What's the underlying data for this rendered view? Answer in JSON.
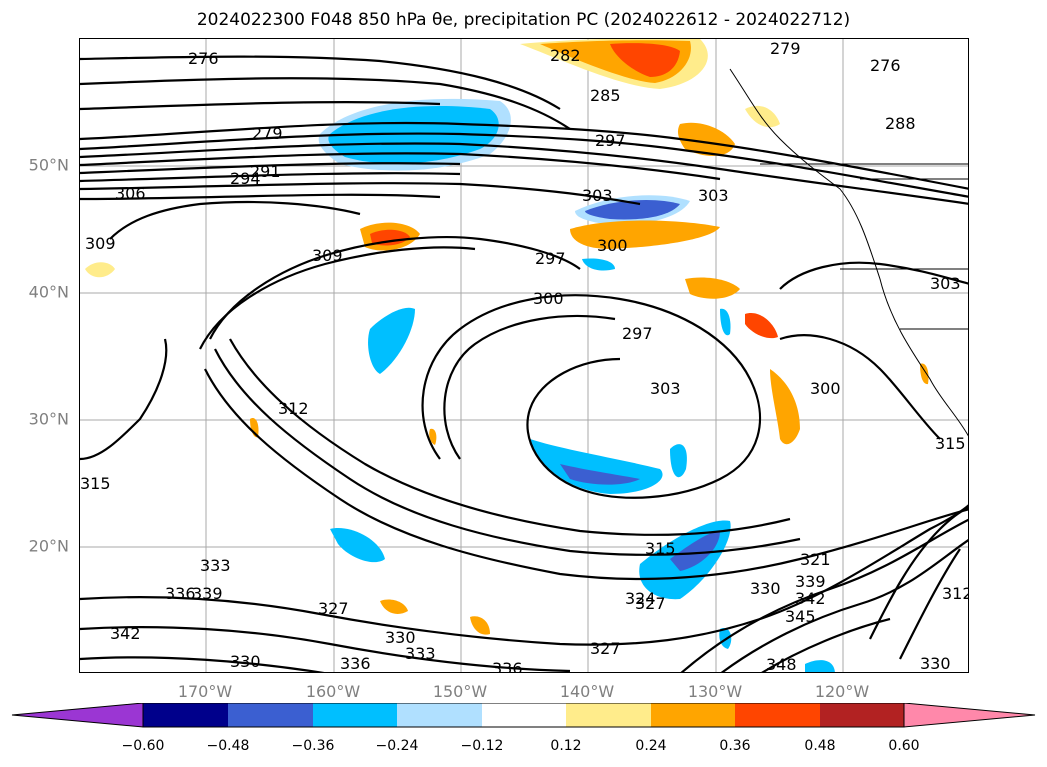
{
  "title": "2024022300 F048 850 hPa θe, precipitation PC (2024022612 - 2024022712)",
  "latitude_labels": [
    "50°N",
    "40°N",
    "30°N",
    "20°N"
  ],
  "longitude_labels": [
    "170°W",
    "160°W",
    "150°W",
    "140°W",
    "130°W",
    "120°W"
  ],
  "contour_labels": [
    "276",
    "276",
    "279",
    "279",
    "282",
    "285",
    "288",
    "291",
    "294",
    "297",
    "297",
    "297",
    "300",
    "300",
    "300",
    "303",
    "303",
    "303",
    "303",
    "306",
    "309",
    "309",
    "312",
    "312",
    "315",
    "315",
    "315",
    "321",
    "324",
    "327",
    "327",
    "327",
    "330",
    "330",
    "330",
    "330",
    "333",
    "333",
    "336",
    "336",
    "336",
    "339",
    "339",
    "342",
    "342",
    "345",
    "348"
  ],
  "colorbar": {
    "ticks": [
      "−0.60",
      "−0.48",
      "−0.36",
      "−0.24",
      "−0.12",
      "0.12",
      "0.24",
      "0.36",
      "0.48",
      "0.60"
    ],
    "colors": [
      "#9b36d3",
      "#00008b",
      "#3b5fd1",
      "#00bfff",
      "#b0e0ff",
      "#ffffff",
      "#ffec8b",
      "#ffa500",
      "#ff4500",
      "#b22222",
      "#ff88aa"
    ]
  }
}
